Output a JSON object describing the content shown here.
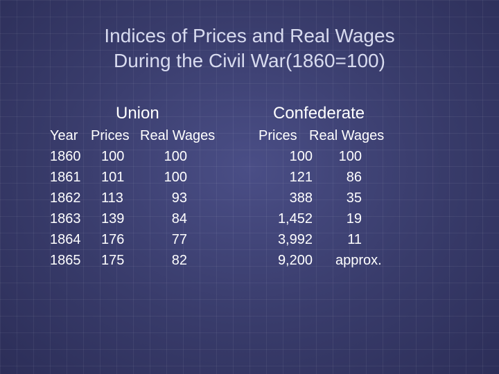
{
  "title_line1": "Indices of Prices and Real Wages",
  "title_line2": "During the Civil War(1860=100)",
  "union_heading": "Union",
  "confederate_heading": "Confederate",
  "columns": {
    "year": "Year",
    "union_prices": "Prices",
    "union_wages": "Real Wages",
    "conf_prices": "Prices",
    "conf_wages": "Real Wages"
  },
  "rows": [
    {
      "year": "1860",
      "union_prices": "100",
      "union_wages": "100",
      "conf_prices": "100",
      "conf_wages": "100"
    },
    {
      "year": "1861",
      "union_prices": "101",
      "union_wages": "100",
      "conf_prices": "121",
      "conf_wages": "86"
    },
    {
      "year": "1862",
      "union_prices": "113",
      "union_wages": "93",
      "conf_prices": "388",
      "conf_wages": "35"
    },
    {
      "year": "1863",
      "union_prices": "139",
      "union_wages": "84",
      "conf_prices": "1,452",
      "conf_wages": "19"
    },
    {
      "year": "1864",
      "union_prices": "176",
      "union_wages": "77",
      "conf_prices": "3,992",
      "conf_wages": "11"
    },
    {
      "year": "1865",
      "union_prices": "175",
      "union_wages": "82",
      "conf_prices": "9,200",
      "conf_wages": "approx."
    }
  ]
}
